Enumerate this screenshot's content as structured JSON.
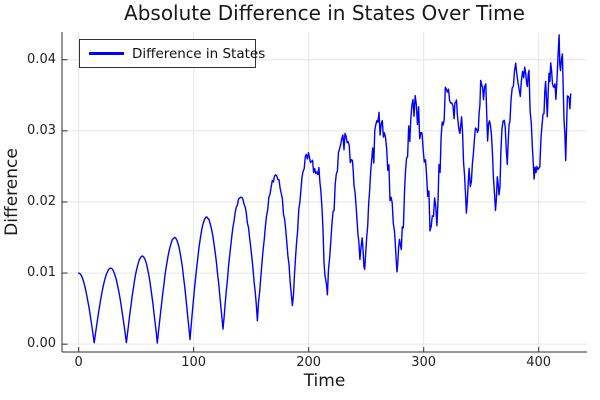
{
  "title": {
    "text": "Absolute Difference in States Over Time"
  },
  "legend": {
    "label": "Difference in States"
  },
  "axes": {
    "xlabel": "Time",
    "ylabel": "Difference",
    "x_ticks": {
      "values": [
        0,
        100,
        200,
        300,
        400
      ],
      "labels": [
        "0",
        "100",
        "200",
        "300",
        "400"
      ]
    },
    "y_ticks": {
      "values": [
        0,
        0.01,
        0.02,
        0.03,
        0.04
      ],
      "labels": [
        "0.00",
        "0.01",
        "0.02",
        "0.03",
        "0.04"
      ]
    }
  },
  "colors": {
    "series": "#0000ff",
    "grid": "#e6e6e6",
    "spine": "#2f2f2f",
    "text": "#191919",
    "legend_border": "#333333",
    "background": "#ffffff"
  },
  "chart_data": {
    "type": "line",
    "title": "Absolute Difference in States Over Time",
    "xlabel": "Time",
    "ylabel": "Difference",
    "legend_position": "top-left",
    "grid": true,
    "xlim": [
      -14.5,
      442
    ],
    "ylim": [
      -0.0011,
      0.0439
    ],
    "x_data_range": [
      0,
      428
    ],
    "y_data_range": [
      0.0,
      0.043
    ],
    "series": [
      {
        "name": "Difference in States",
        "color": "#0000ff",
        "description": "Oscillation of period ~28 with growing peaks and minima; becomes chaotic/jagged after t~300; max 0.043 at t~418",
        "keypoints": [
          [
            0,
            0.01
          ],
          [
            13.5,
            0.0002
          ],
          [
            27.8,
            0.0107
          ],
          [
            41.5,
            0.0002
          ],
          [
            55.4,
            0.0124
          ],
          [
            68.4,
            0.0002
          ],
          [
            83.5,
            0.015
          ],
          [
            96.8,
            0.0007
          ],
          [
            111.3,
            0.0179
          ],
          [
            125.5,
            0.0021
          ],
          [
            140.9,
            0.0207
          ],
          [
            155.4,
            0.0038
          ],
          [
            171.3,
            0.0238
          ],
          [
            185.8,
            0.0052
          ],
          [
            198.9,
            0.0267
          ],
          [
            206.1,
            0.024
          ],
          [
            208,
            0.0248
          ],
          [
            214.2,
            0.0095
          ],
          [
            216.3,
            0.0078
          ],
          [
            230.7,
            0.0294
          ],
          [
            238,
            0.0257
          ],
          [
            239.4,
            0.0231
          ],
          [
            244.5,
            0.0124
          ],
          [
            246.5,
            0.0148
          ],
          [
            248.7,
            0.0104
          ],
          [
            253.9,
            0.0243
          ],
          [
            261.1,
            0.032
          ],
          [
            274.5,
            0.016
          ],
          [
            276.8,
            0.0105
          ],
          [
            279,
            0.015
          ],
          [
            280.5,
            0.0135
          ],
          [
            291.6,
            0.0341
          ],
          [
            306.5,
            0.0165
          ],
          [
            309.5,
            0.0205
          ],
          [
            311.5,
            0.0186
          ],
          [
            320.6,
            0.036
          ],
          [
            326.4,
            0.033
          ],
          [
            328.5,
            0.0345
          ],
          [
            330.7,
            0.0297
          ],
          [
            333,
            0.032
          ],
          [
            337.1,
            0.0186
          ],
          [
            339.5,
            0.0245
          ],
          [
            341.5,
            0.0228
          ],
          [
            344,
            0.0295
          ],
          [
            346,
            0.031
          ],
          [
            347.5,
            0.0298
          ],
          [
            349.6,
            0.0372
          ],
          [
            352,
            0.0352
          ],
          [
            354,
            0.0365
          ],
          [
            355.6,
            0.0297
          ],
          [
            358,
            0.0322
          ],
          [
            362.4,
            0.0186
          ],
          [
            364,
            0.024
          ],
          [
            365.5,
            0.0207
          ],
          [
            368,
            0.03
          ],
          [
            370,
            0.0325
          ],
          [
            372.7,
            0.0259
          ],
          [
            375,
            0.033
          ],
          [
            377,
            0.0358
          ],
          [
            380,
            0.0393
          ],
          [
            383,
            0.0355
          ],
          [
            385,
            0.037
          ],
          [
            387,
            0.0395
          ],
          [
            389.5,
            0.037
          ],
          [
            391.6,
            0.0381
          ],
          [
            394.5,
            0.0275
          ],
          [
            396,
            0.0242
          ],
          [
            398.5,
            0.0252
          ],
          [
            400,
            0.0244
          ],
          [
            402,
            0.029
          ],
          [
            404.6,
            0.0337
          ],
          [
            406,
            0.0367
          ],
          [
            407.5,
            0.033
          ],
          [
            409,
            0.0376
          ],
          [
            410.4,
            0.0398
          ],
          [
            412,
            0.0365
          ],
          [
            413.3,
            0.0372
          ],
          [
            415,
            0.0352
          ],
          [
            417.7,
            0.043
          ],
          [
            419,
            0.039
          ],
          [
            420.6,
            0.0407
          ],
          [
            422,
            0.0325
          ],
          [
            423.5,
            0.0259
          ],
          [
            425,
            0.0355
          ],
          [
            426.4,
            0.0341
          ],
          [
            427.8,
            0.0352
          ]
        ],
        "noise_texture": {
          "amplitude_schedule": [
            [
              0,
              0
            ],
            [
              120,
              0.0001
            ],
            [
              160,
              0.0004
            ],
            [
              200,
              0.0009
            ],
            [
              240,
              0.0015
            ],
            [
              280,
              0.0023
            ],
            [
              310,
              0.003
            ],
            [
              340,
              0.0036
            ],
            [
              428,
              0.0036
            ]
          ],
          "frequencies": [
            2.17,
            3.61,
            5.83
          ],
          "phases": [
            0.8,
            2.0,
            4.1
          ],
          "weights": [
            1.0,
            0.6,
            0.4
          ],
          "gain": 0.55,
          "down_bias": 0.3,
          "dense_segment_scale": 0.35
        }
      }
    ]
  }
}
